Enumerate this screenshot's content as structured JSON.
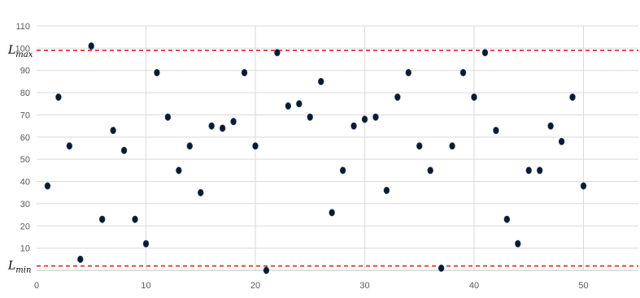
{
  "chart_data": {
    "type": "scatter",
    "title": "",
    "xlabel": "",
    "ylabel": "",
    "xlim": [
      0,
      55
    ],
    "ylim": [
      0,
      110
    ],
    "x_ticks": [
      0,
      10,
      20,
      30,
      40,
      50
    ],
    "y_ticks": [
      10,
      20,
      30,
      40,
      50,
      60,
      70,
      80,
      90,
      100,
      110
    ],
    "grid": true,
    "legend": "none",
    "marker_color": "#0b1a2e",
    "gridline_color": "#d9d9d9",
    "limit_color": "#e02020",
    "series": [
      {
        "x": [
          1,
          2,
          3,
          4,
          5,
          6,
          7,
          8,
          9,
          10,
          11,
          12,
          13,
          14,
          15,
          16,
          17,
          18,
          19,
          20,
          21,
          22,
          23,
          24,
          25,
          26,
          27,
          28,
          29,
          30,
          31,
          32,
          33,
          34,
          35,
          36,
          37,
          38,
          39,
          40,
          41,
          42,
          43,
          44,
          45,
          46,
          47,
          48,
          49,
          50
        ],
        "values": [
          38,
          78,
          56,
          5,
          101,
          23,
          63,
          54,
          23,
          12,
          89,
          69,
          45,
          56,
          35,
          65,
          64,
          67,
          89,
          56,
          0,
          98,
          74,
          75,
          69,
          85,
          26,
          45,
          65,
          68,
          69,
          36,
          78,
          89,
          56,
          45,
          1,
          56,
          89,
          78,
          98,
          63,
          23,
          12,
          45,
          45,
          65,
          58,
          78,
          38
        ]
      }
    ],
    "limits": [
      {
        "main": "L",
        "sub": "max",
        "value": 99
      },
      {
        "main": "L",
        "sub": "min",
        "value": 2
      }
    ]
  }
}
